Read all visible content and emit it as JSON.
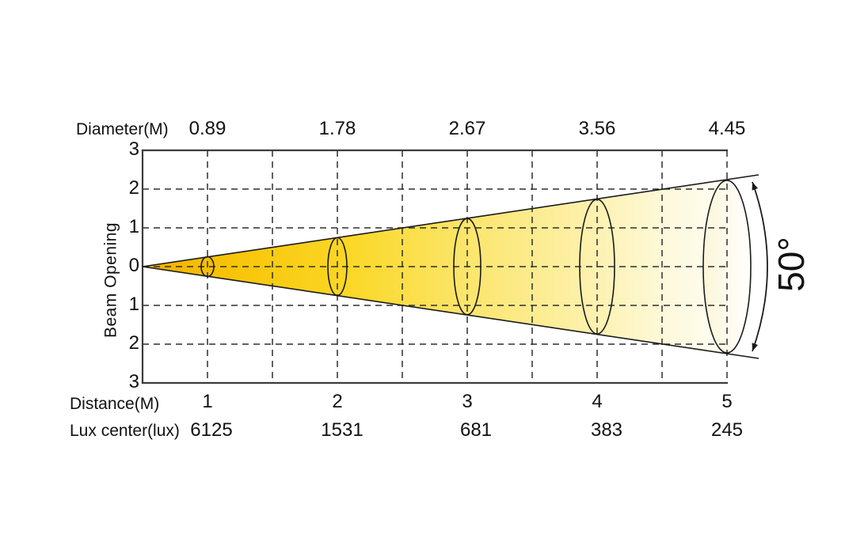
{
  "chart_data": {
    "type": "area",
    "subtype": "light-beam-cone-photometric-diagram",
    "title": "",
    "beam_angle_deg": 50,
    "beam_angle_label": "50°",
    "top_axis": {
      "label": "Diameter(M)",
      "tick_labels": [
        "0.89",
        "1.78",
        "2.67",
        "3.56",
        "4.45"
      ]
    },
    "left_axis": {
      "label": "Beam Opening",
      "tick_labels": [
        "3",
        "2",
        "1",
        "0",
        "1",
        "2",
        "3"
      ],
      "range_m": [
        -3,
        3
      ],
      "grid": "dashed"
    },
    "bottom_axis": {
      "label": "Distance(M)",
      "tick_labels": [
        "1",
        "2",
        "3",
        "4",
        "5"
      ],
      "grid": "dashed"
    },
    "lux_row": {
      "label": "Lux center(lux)",
      "values": [
        "6125",
        "1531",
        "681",
        "383",
        "245"
      ]
    },
    "points": [
      {
        "distance_m": 1,
        "diameter_m": 0.89,
        "lux_center": 6125
      },
      {
        "distance_m": 2,
        "diameter_m": 1.78,
        "lux_center": 1531
      },
      {
        "distance_m": 3,
        "diameter_m": 2.67,
        "lux_center": 681
      },
      {
        "distance_m": 4,
        "diameter_m": 3.56,
        "lux_center": 383
      },
      {
        "distance_m": 5,
        "diameter_m": 4.45,
        "lux_center": 245
      }
    ],
    "legend": "none",
    "grid_on": true,
    "colors": {
      "beam_gradient": [
        "#F2AF00",
        "#F7C408",
        "#FBD725",
        "#FBE56A",
        "#FDF0A8",
        "#FDF9DC",
        "#FEFEF5"
      ],
      "cap_gradient": [
        "#FBF6D8",
        "#FFFFFF"
      ],
      "outline": "#1b1b1b",
      "grid": "#2e2e2e",
      "border": "#3c3c3c",
      "text": "#111111"
    }
  }
}
